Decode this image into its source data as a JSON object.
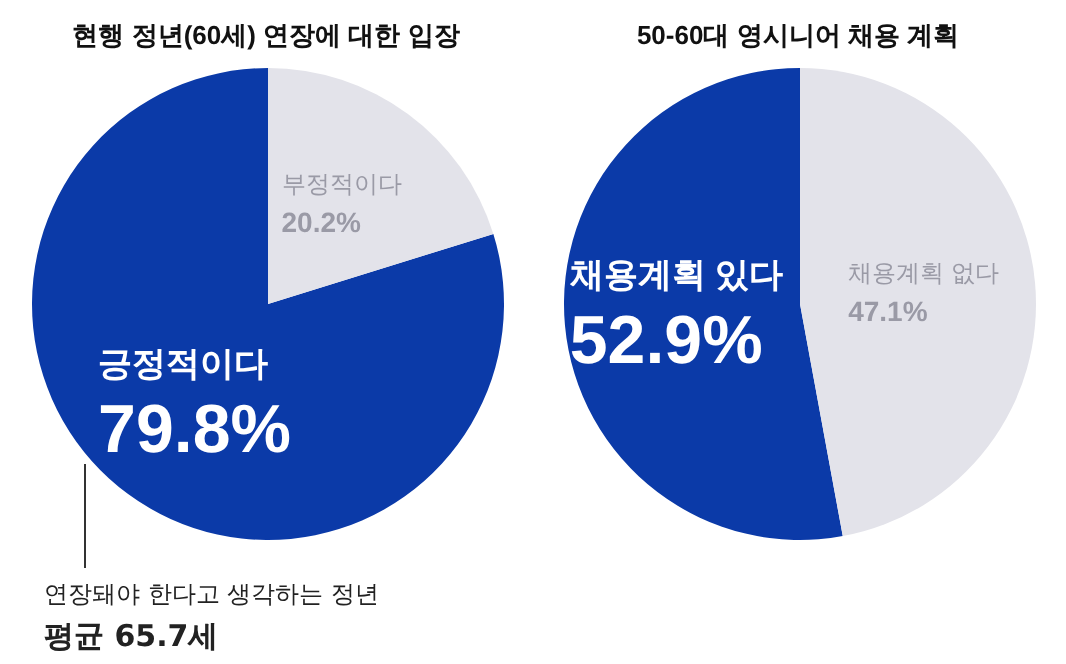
{
  "chart_data": [
    {
      "type": "pie",
      "title": "현행 정년(60세) 연장에 대한 입장",
      "categories": [
        "긍정적이다",
        "부정적이다"
      ],
      "values": [
        79.8,
        20.2
      ],
      "value_labels": [
        "79.8%",
        "20.2%"
      ],
      "colors": [
        "#0b3aa8",
        "#e3e3ea"
      ],
      "annotations": [
        "연장돼야 한다고 생각하는 정년",
        "평균 65.7세"
      ]
    },
    {
      "type": "pie",
      "title": "50-60대 영시니어 채용 계획",
      "categories": [
        "채용계획 있다",
        "채용계획 없다"
      ],
      "values": [
        52.9,
        47.1
      ],
      "value_labels": [
        "52.9%",
        "47.1%"
      ],
      "colors": [
        "#0b3aa8",
        "#e3e3ea"
      ]
    }
  ]
}
